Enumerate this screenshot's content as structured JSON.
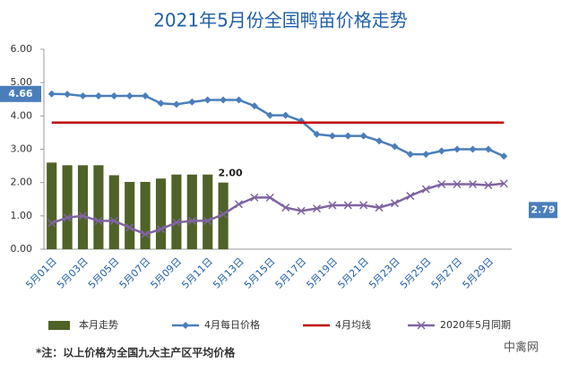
{
  "chart_data": {
    "type": "bar_line",
    "title": "2021年5月份全国鸭苗价格走势",
    "categories": [
      "5月01日",
      null,
      "5月03日",
      null,
      "5月05日",
      null,
      "5月07日",
      null,
      "5月09日",
      null,
      "5月11日",
      null,
      "5月13日",
      null,
      "5月15日",
      null,
      "5月17日",
      null,
      "5月19日",
      null,
      "5月21日",
      null,
      "5月23日",
      null,
      "5月25日",
      null,
      "5月27日",
      null,
      "5月29日",
      null
    ],
    "series": [
      {
        "name": "本月走势",
        "kind": "bar",
        "color": "#4f6228",
        "values": [
          2.6,
          2.52,
          2.52,
          2.52,
          2.22,
          2.02,
          2.02,
          2.12,
          2.24,
          2.24,
          2.24,
          2.0,
          null,
          null,
          null,
          null,
          null,
          null,
          null,
          null,
          null,
          null,
          null,
          null,
          null,
          null,
          null,
          null,
          null,
          null
        ],
        "value_labels": [
          null,
          null,
          null,
          null,
          null,
          null,
          null,
          null,
          null,
          null,
          null,
          "2.00",
          null,
          null,
          null,
          null,
          null,
          null,
          null,
          null,
          null,
          null,
          null,
          null,
          null,
          null,
          null,
          null,
          null,
          null
        ]
      },
      {
        "name": "4月每日价格",
        "kind": "line",
        "marker": "diamond",
        "color": "#4a7ebb",
        "values": [
          4.66,
          4.65,
          4.6,
          4.6,
          4.6,
          4.6,
          4.6,
          4.38,
          4.35,
          4.42,
          4.48,
          4.48,
          4.48,
          4.3,
          4.02,
          4.02,
          3.85,
          3.45,
          3.4,
          3.4,
          3.4,
          3.25,
          3.08,
          2.85,
          2.85,
          2.95,
          3.0,
          3.0,
          3.0,
          2.79
        ],
        "value_labels": [
          "4.66",
          null,
          null,
          null,
          null,
          null,
          null,
          null,
          null,
          null,
          null,
          null,
          null,
          null,
          null,
          null,
          null,
          null,
          null,
          null,
          null,
          null,
          null,
          null,
          null,
          null,
          null,
          null,
          null,
          "2.79"
        ]
      },
      {
        "name": "4月均线",
        "kind": "line",
        "marker": "none",
        "color": "#c00000",
        "values": [
          3.8,
          3.8,
          3.8,
          3.8,
          3.8,
          3.8,
          3.8,
          3.8,
          3.8,
          3.8,
          3.8,
          3.8,
          3.8,
          3.8,
          3.8,
          3.8,
          3.8,
          3.8,
          3.8,
          3.8,
          3.8,
          3.8,
          3.8,
          3.8,
          3.8,
          3.8,
          3.8,
          3.8,
          3.8,
          3.8
        ]
      },
      {
        "name": "2020年5月同期",
        "kind": "line",
        "marker": "x",
        "color": "#8064a2",
        "values": [
          0.78,
          0.95,
          1.0,
          0.85,
          0.85,
          0.65,
          0.45,
          0.6,
          0.8,
          0.85,
          0.85,
          1.05,
          1.35,
          1.55,
          1.55,
          1.25,
          1.15,
          1.22,
          1.32,
          1.32,
          1.32,
          1.25,
          1.38,
          1.6,
          1.8,
          1.95,
          1.95,
          1.95,
          1.92,
          1.97
        ]
      }
    ],
    "ylim": [
      0,
      6
    ],
    "yticks": [
      {
        "value": 0,
        "label": "0.00"
      },
      {
        "value": 1,
        "label": "1.00"
      },
      {
        "value": 2,
        "label": "2.00"
      },
      {
        "value": 3,
        "label": "3.00"
      },
      {
        "value": 4,
        "label": "4.00"
      },
      {
        "value": 5,
        "label": "5.00"
      },
      {
        "value": 6,
        "label": "6.00"
      }
    ],
    "grid": false,
    "legend": "bottom",
    "footnote": "*注：以上价格为全国九大主产区平均价格",
    "watermark": "中禽网"
  }
}
